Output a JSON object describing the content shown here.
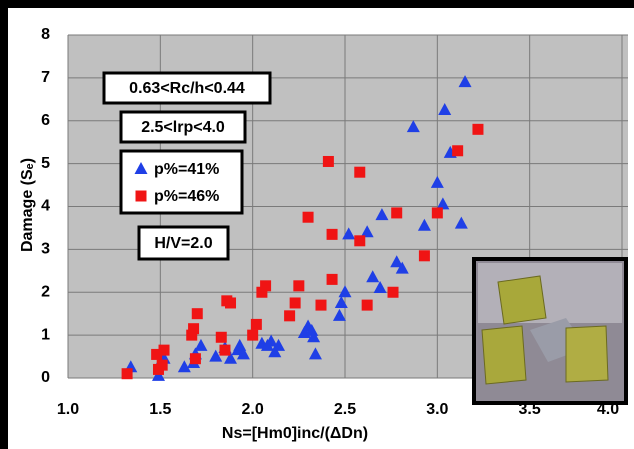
{
  "chart_data": {
    "type": "scatter",
    "xlabel": "Ns=[Hm0]inc/(ΔDn)",
    "ylabel": "Damage (Sₑ)",
    "annotations": [
      "0.63<Rc/h<0.44",
      "2.5<lrp<4.0",
      "H/V=2.0"
    ],
    "xlim": [
      1.0,
      4.0
    ],
    "xticks": [
      {
        "value": 1,
        "label": "1.0"
      },
      {
        "value": 1.5,
        "label": "1.5"
      },
      {
        "value": 2,
        "label": "2.0"
      },
      {
        "value": 2.5,
        "label": "2.5"
      },
      {
        "value": 3,
        "label": "3.0"
      },
      {
        "value": 3.5,
        "label": "3.5"
      },
      {
        "value": 4,
        "label": "4.0"
      }
    ],
    "ylim": [
      0,
      8
    ],
    "yticks": [
      0,
      1,
      2,
      3,
      4,
      5,
      6,
      7,
      8
    ],
    "grid": true,
    "series": [
      {
        "name": "p%=41%",
        "color": "#1f3fe6",
        "marker": "triangle",
        "x": [
          1.34,
          1.49,
          1.5,
          1.52,
          1.63,
          1.68,
          1.69,
          1.72,
          1.8,
          1.85,
          1.88,
          1.92,
          1.93,
          1.95,
          2.05,
          2.08,
          2.1,
          2.12,
          2.14,
          2.28,
          2.3,
          2.32,
          2.33,
          2.34,
          2.47,
          2.48,
          2.5,
          2.52,
          2.62,
          2.65,
          2.69,
          2.7,
          2.78,
          2.81,
          2.87,
          2.93,
          3.0,
          3.03,
          3.04,
          3.07,
          3.13,
          3.15
        ],
        "y": [
          0.25,
          0.05,
          0.35,
          0.45,
          0.25,
          0.35,
          0.55,
          0.75,
          0.5,
          0.7,
          0.45,
          0.65,
          0.75,
          0.55,
          0.8,
          0.75,
          0.85,
          0.6,
          0.75,
          1.05,
          1.2,
          1.1,
          0.95,
          0.55,
          1.45,
          1.75,
          2.0,
          3.35,
          3.4,
          2.35,
          2.1,
          3.8,
          2.7,
          2.55,
          5.85,
          3.55,
          4.55,
          4.05,
          6.25,
          5.25,
          3.6,
          6.9
        ]
      },
      {
        "name": "p%=46%",
        "color": "#f01414",
        "marker": "square",
        "x": [
          1.32,
          1.48,
          1.49,
          1.51,
          1.52,
          1.67,
          1.68,
          1.69,
          1.7,
          1.83,
          1.85,
          1.86,
          1.88,
          2.0,
          2.02,
          2.05,
          2.07,
          2.2,
          2.23,
          2.25,
          2.3,
          2.37,
          2.41,
          2.43,
          2.43,
          2.58,
          2.58,
          2.62,
          2.76,
          2.78,
          2.93,
          3.0,
          3.11,
          3.22
        ],
        "y": [
          0.1,
          0.55,
          0.2,
          0.3,
          0.65,
          1.0,
          1.15,
          0.45,
          1.5,
          0.95,
          0.65,
          1.8,
          1.75,
          1.0,
          1.25,
          2.0,
          2.15,
          1.45,
          1.75,
          2.15,
          3.75,
          1.7,
          5.05,
          3.35,
          2.3,
          4.8,
          3.2,
          1.7,
          2.0,
          3.85,
          2.85,
          3.85,
          5.3,
          5.8
        ]
      }
    ]
  }
}
